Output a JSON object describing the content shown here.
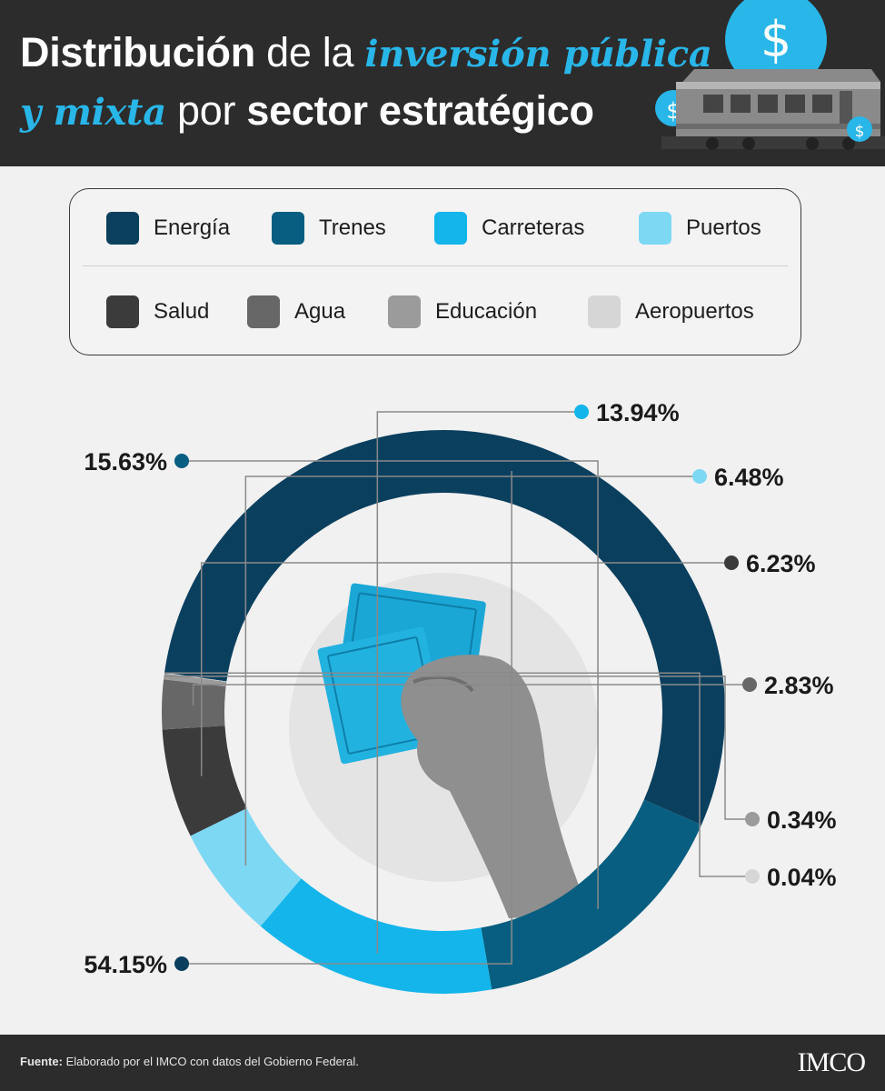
{
  "header": {
    "title_line1_part1": "Distribución",
    "title_line1_part2": " de la ",
    "title_line1_part3": "inversión pública",
    "title_line2_part1": "y mixta",
    "title_line2_part2": " por ",
    "title_line2_part3": "sector estratégico",
    "highlight_color": "#29b6e8",
    "icons": [
      "dollar-coin-icon",
      "dollar-coin-icon",
      "dollar-coin-icon",
      "train-icon"
    ]
  },
  "legend": {
    "items": [
      {
        "label": "Energía",
        "color": "#0b3f5e"
      },
      {
        "label": "Trenes",
        "color": "#075e80"
      },
      {
        "label": "Carreteras",
        "color": "#13b5ea"
      },
      {
        "label": "Puertos",
        "color": "#7dd8f4"
      },
      {
        "label": "Salud",
        "color": "#3b3b3b"
      },
      {
        "label": "Agua",
        "color": "#676767"
      },
      {
        "label": "Educación",
        "color": "#9b9b9b"
      },
      {
        "label": "Aeropuertos",
        "color": "#d6d6d6"
      }
    ]
  },
  "chart_data": {
    "type": "pie",
    "style": "donut",
    "categories": [
      "Energía",
      "Trenes",
      "Carreteras",
      "Puertos",
      "Salud",
      "Agua",
      "Educación",
      "Aeropuertos"
    ],
    "values": [
      54.15,
      15.63,
      13.94,
      6.48,
      6.23,
      2.83,
      0.34,
      0.04
    ],
    "labels": [
      "54.15%",
      "15.63%",
      "13.94%",
      "6.48%",
      "6.23%",
      "2.83%",
      "0.34%",
      "0.04%"
    ],
    "colors": [
      "#0b3f5e",
      "#075e80",
      "#13b5ea",
      "#7dd8f4",
      "#3b3b3b",
      "#676767",
      "#9b9b9b",
      "#d6d6d6"
    ],
    "center_image": "hand-holding-banknotes"
  },
  "footer": {
    "source_label": "Fuente:",
    "source_text": " Elaborado por el IMCO con datos del Gobierno Federal.",
    "logo": "IMCO"
  }
}
